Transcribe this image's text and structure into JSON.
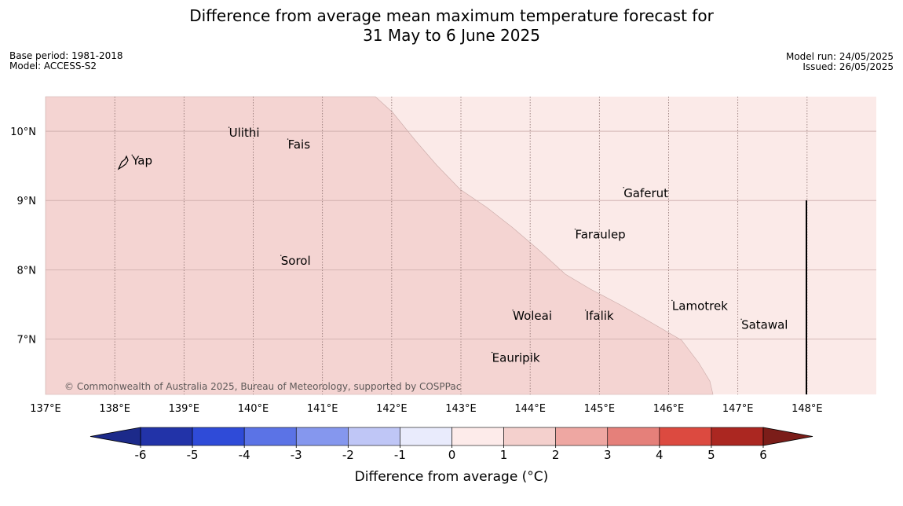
{
  "title": {
    "line1": "Difference from average mean maximum temperature forecast for",
    "line2": "31 May to 6 June 2025"
  },
  "meta_left": {
    "base_period": "Base period: 1981-2018",
    "model": "Model: ACCESS-S2"
  },
  "meta_right": {
    "model_run": "Model run: 24/05/2025",
    "issued": "Issued: 26/05/2025"
  },
  "map": {
    "lon_range": [
      137,
      149
    ],
    "lat_range": [
      6.2,
      10.5
    ],
    "lon_ticks": [
      137,
      138,
      139,
      140,
      141,
      142,
      143,
      144,
      145,
      146,
      147,
      148
    ],
    "lon_labels": [
      "137°E",
      "138°E",
      "139°E",
      "140°E",
      "141°E",
      "142°E",
      "143°E",
      "144°E",
      "145°E",
      "146°E",
      "147°E",
      "148°E"
    ],
    "lat_ticks": [
      10,
      9,
      8,
      7
    ],
    "lat_labels": [
      "10°N",
      "9°N",
      "8°N",
      "7°N"
    ],
    "colors": {
      "warm_1_2": "#f4d4d2",
      "warm_0_1": "#fbeae8",
      "gridline": "#c9a9a7"
    },
    "places": [
      {
        "name": "Yap",
        "lon": 138.25,
        "lat": 9.52
      },
      {
        "name": "Ulithi",
        "lon": 139.65,
        "lat": 9.92
      },
      {
        "name": "Fais",
        "lon": 140.5,
        "lat": 9.75
      },
      {
        "name": "Gaferut",
        "lon": 145.35,
        "lat": 9.05
      },
      {
        "name": "Faraulep",
        "lon": 144.65,
        "lat": 8.45
      },
      {
        "name": "Sorol",
        "lon": 140.4,
        "lat": 8.07
      },
      {
        "name": "Lamotrek",
        "lon": 146.05,
        "lat": 7.42
      },
      {
        "name": "Woleai",
        "lon": 143.75,
        "lat": 7.28
      },
      {
        "name": "Ifalik",
        "lon": 144.8,
        "lat": 7.28
      },
      {
        "name": "Satawal",
        "lon": 147.05,
        "lat": 7.15
      },
      {
        "name": "Eauripik",
        "lon": 143.45,
        "lat": 6.67
      }
    ],
    "copyright": "© Commonwealth of Australia 2025, Bureau of Meteorology, supported by COSPPac"
  },
  "colorbar": {
    "colors": [
      "#2233a8",
      "#2f4bd8",
      "#5b73e6",
      "#8597ee",
      "#bfc6f6",
      "#e9ebfc",
      "#fdebea",
      "#f4d0cd",
      "#eea7a2",
      "#e5807a",
      "#dc4a40",
      "#ab2721"
    ],
    "under_color": "#1c2a8a",
    "over_color": "#7b1d19",
    "ticks": [
      "-6",
      "-5",
      "-4",
      "-3",
      "-2",
      "-1",
      "0",
      "1",
      "2",
      "3",
      "4",
      "5",
      "6"
    ],
    "label": "Difference from average (°C)"
  }
}
